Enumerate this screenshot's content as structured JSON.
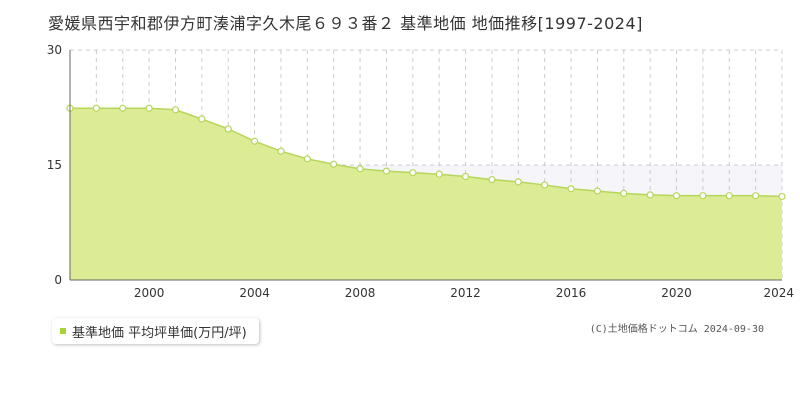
{
  "title": "愛媛県西宇和郡伊方町湊浦字久木尾６９３番２ 基準地価 地価推移[1997-2024]",
  "legend_label": "基準地価 平均坪単価(万円/坪)",
  "copyright": "(C)土地価格ドットコム 2024-09-30",
  "colors": {
    "fill": "#dcec94",
    "line": "#b6d65a",
    "marker_fill": "#ffffff",
    "marker_stroke": "#b6d65a",
    "legend": "#a8d23a"
  },
  "chart_data": {
    "type": "area",
    "title": "",
    "xlabel": "",
    "ylabel": "",
    "x": [
      1997,
      1998,
      1999,
      2000,
      2001,
      2002,
      2003,
      2004,
      2005,
      2006,
      2007,
      2008,
      2009,
      2010,
      2011,
      2012,
      2013,
      2014,
      2015,
      2016,
      2017,
      2018,
      2019,
      2020,
      2021,
      2022,
      2023,
      2024
    ],
    "series": [
      {
        "name": "基準地価 平均坪単価(万円/坪)",
        "values": [
          22.4,
          22.4,
          22.4,
          22.4,
          22.2,
          21.0,
          19.7,
          18.1,
          16.8,
          15.8,
          15.1,
          14.5,
          14.2,
          14.0,
          13.8,
          13.5,
          13.1,
          12.8,
          12.4,
          11.9,
          11.6,
          11.3,
          11.1,
          11.0,
          11.0,
          11.0,
          11.0,
          10.9
        ]
      }
    ],
    "xlim": [
      1997,
      2024
    ],
    "ylim": [
      0,
      30
    ],
    "x_ticks": [
      2000,
      2004,
      2008,
      2012,
      2016,
      2020,
      2024
    ],
    "y_ticks": [
      0,
      15,
      30
    ],
    "grid": true,
    "legend_position": "bottom-left"
  }
}
